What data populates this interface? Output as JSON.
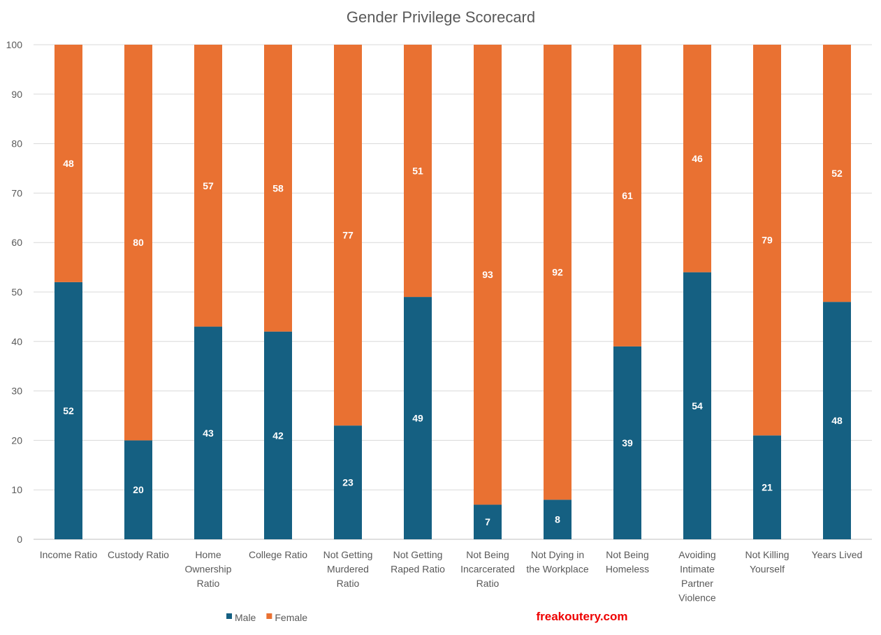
{
  "chart_data": {
    "type": "bar",
    "stacked": true,
    "title": "Gender Privilege Scorecard",
    "xlabel": "",
    "ylabel": "",
    "ylim": [
      0,
      100
    ],
    "yticks": [
      0,
      10,
      20,
      30,
      40,
      50,
      60,
      70,
      80,
      90,
      100
    ],
    "grid": true,
    "legend_position": "bottom-left",
    "categories": [
      [
        "Income Ratio"
      ],
      [
        "Custody Ratio"
      ],
      [
        "Home",
        "Ownership",
        "Ratio"
      ],
      [
        "College Ratio"
      ],
      [
        "Not Getting",
        "Murdered",
        "Ratio"
      ],
      [
        "Not Getting",
        "Raped Ratio"
      ],
      [
        "Not Being",
        "Incarcerated",
        "Ratio"
      ],
      [
        "Not Dying in",
        "the Workplace"
      ],
      [
        "Not Being",
        "Homeless"
      ],
      [
        "Avoiding",
        "Intimate",
        "Partner",
        "Violence"
      ],
      [
        "Not Killing",
        "Yourself"
      ],
      [
        "Years Lived"
      ]
    ],
    "series": [
      {
        "name": "Male",
        "color": "#156082",
        "values": [
          52,
          20,
          43,
          42,
          23,
          49,
          7,
          8,
          39,
          54,
          21,
          48
        ]
      },
      {
        "name": "Female",
        "color": "#E97132",
        "values": [
          48,
          80,
          57,
          58,
          77,
          51,
          93,
          92,
          61,
          46,
          79,
          52
        ]
      }
    ]
  },
  "watermark": "freakoutery.com"
}
